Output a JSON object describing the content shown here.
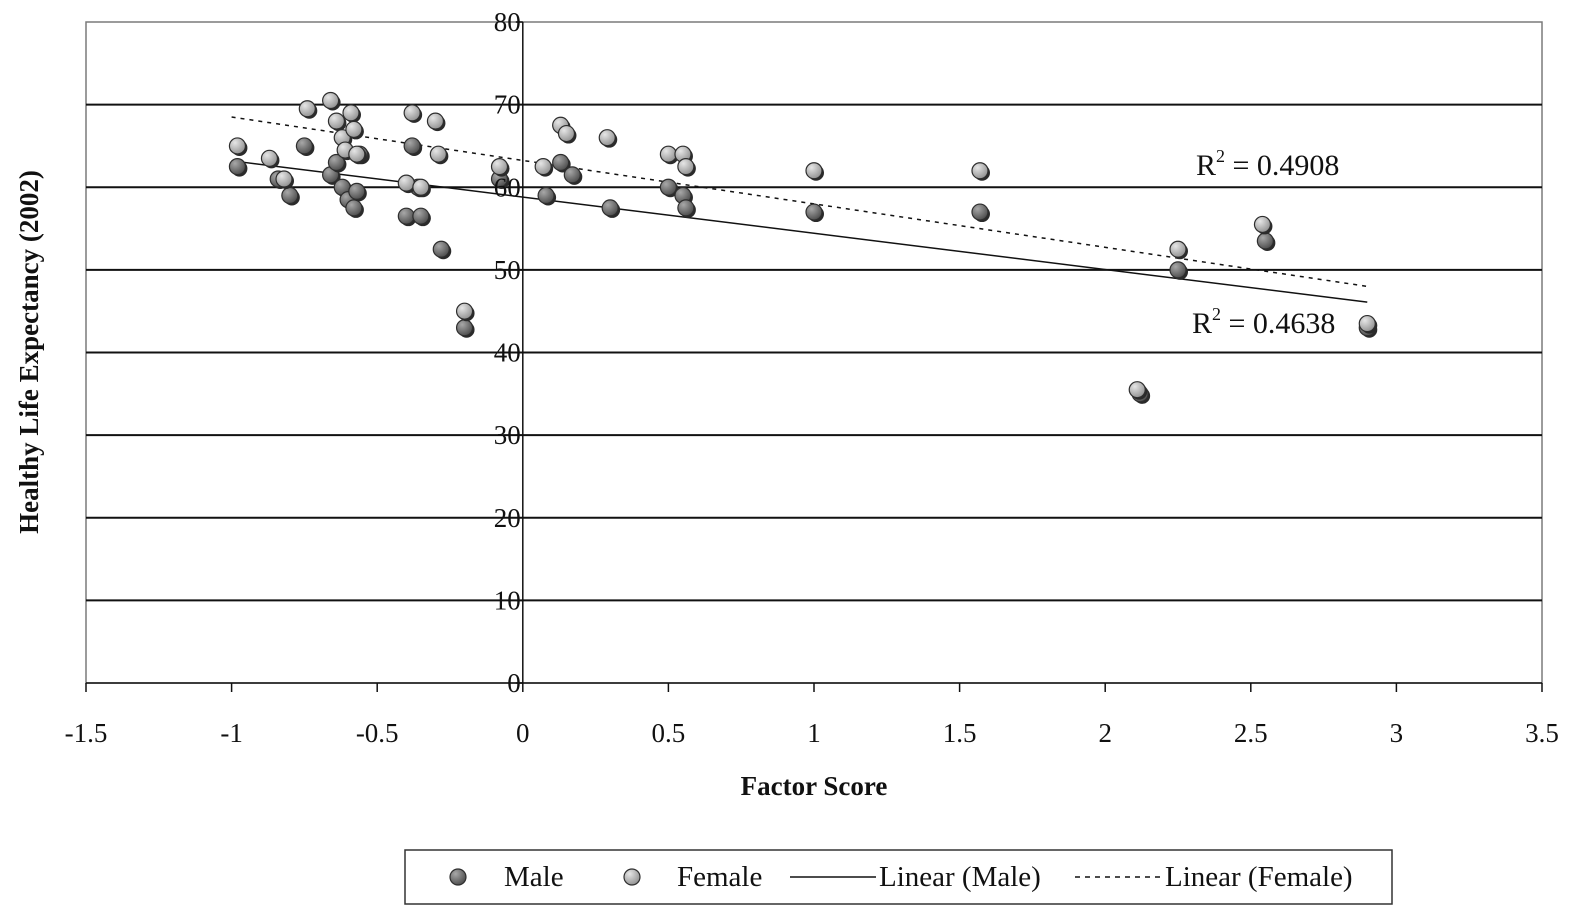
{
  "chart_data": {
    "type": "scatter",
    "xlabel": "Factor Score",
    "ylabel": "Healthy Life Expectancy (2002)",
    "xlim": [
      -1.5,
      3.5
    ],
    "ylim": [
      0,
      80
    ],
    "x_ticks": [
      "-1.5",
      "-1",
      "-0.5",
      "0",
      "0.5",
      "1",
      "1.5",
      "2",
      "2.5",
      "3",
      "3.5"
    ],
    "y_ticks": [
      "0",
      "10",
      "20",
      "30",
      "40",
      "50",
      "60",
      "70",
      "80"
    ],
    "y_axis_at_x": 0,
    "grid": "horizontal",
    "legend_position": "bottom",
    "series": [
      {
        "name": "Male",
        "color": "#6b6b6b",
        "x": [
          -0.98,
          -0.84,
          -0.8,
          -0.75,
          -0.66,
          -0.64,
          -0.62,
          -0.6,
          -0.58,
          -0.57,
          -0.56,
          -0.38,
          -0.4,
          -0.36,
          -0.35,
          -0.28,
          -0.2,
          -0.08,
          0.08,
          0.13,
          0.17,
          0.3,
          0.5,
          0.55,
          0.56,
          1.0,
          1.57,
          2.12,
          2.25,
          2.55,
          2.9
        ],
        "y": [
          62.5,
          61.0,
          59.0,
          65.0,
          61.5,
          63.0,
          60.0,
          58.5,
          57.5,
          59.5,
          64.0,
          65.0,
          56.5,
          60.0,
          56.5,
          52.5,
          43.0,
          61.0,
          59.0,
          63.0,
          61.5,
          57.5,
          60.0,
          59.0,
          57.5,
          57.0,
          57.0,
          35.0,
          50.0,
          53.5,
          43.0
        ]
      },
      {
        "name": "Female",
        "color": "#b4b4b4",
        "x": [
          -0.98,
          -0.87,
          -0.82,
          -0.74,
          -0.66,
          -0.64,
          -0.62,
          -0.61,
          -0.59,
          -0.58,
          -0.57,
          -0.38,
          -0.4,
          -0.35,
          -0.3,
          -0.29,
          -0.2,
          -0.08,
          0.07,
          0.13,
          0.15,
          0.29,
          0.5,
          0.55,
          0.56,
          1.0,
          1.57,
          2.11,
          2.25,
          2.54,
          2.9
        ],
        "y": [
          65.0,
          63.5,
          61.0,
          69.5,
          70.5,
          68.0,
          66.0,
          64.5,
          69.0,
          67.0,
          64.0,
          69.0,
          60.5,
          60.0,
          68.0,
          64.0,
          45.0,
          62.5,
          62.5,
          67.5,
          66.5,
          66.0,
          64.0,
          64.0,
          62.5,
          62.0,
          62.0,
          35.5,
          52.5,
          55.5,
          43.5
        ]
      }
    ],
    "trendlines": [
      {
        "name": "Linear (Male)",
        "style": "solid",
        "x": [
          -1.0,
          2.9
        ],
        "y": [
          63.2,
          46.1
        ],
        "r2": "0.4638"
      },
      {
        "name": "Linear (Female)",
        "style": "dotted",
        "x": [
          -1.0,
          2.9
        ],
        "y": [
          68.5,
          48.0
        ],
        "r2": "0.4908"
      }
    ],
    "annotations": {
      "female_r2_prefix": "R",
      "female_r2_sup": "2",
      "female_r2_value": " = 0.4908",
      "male_r2_prefix": "R",
      "male_r2_sup": "2",
      "male_r2_value": " = 0.4638"
    },
    "legend": [
      {
        "label": "Male",
        "kind": "marker",
        "color": "#6b6b6b"
      },
      {
        "label": "Female",
        "kind": "marker",
        "color": "#b4b4b4"
      },
      {
        "label": "Linear (Male)",
        "kind": "solid-line"
      },
      {
        "label": "Linear (Female)",
        "kind": "dotted-line"
      }
    ]
  }
}
